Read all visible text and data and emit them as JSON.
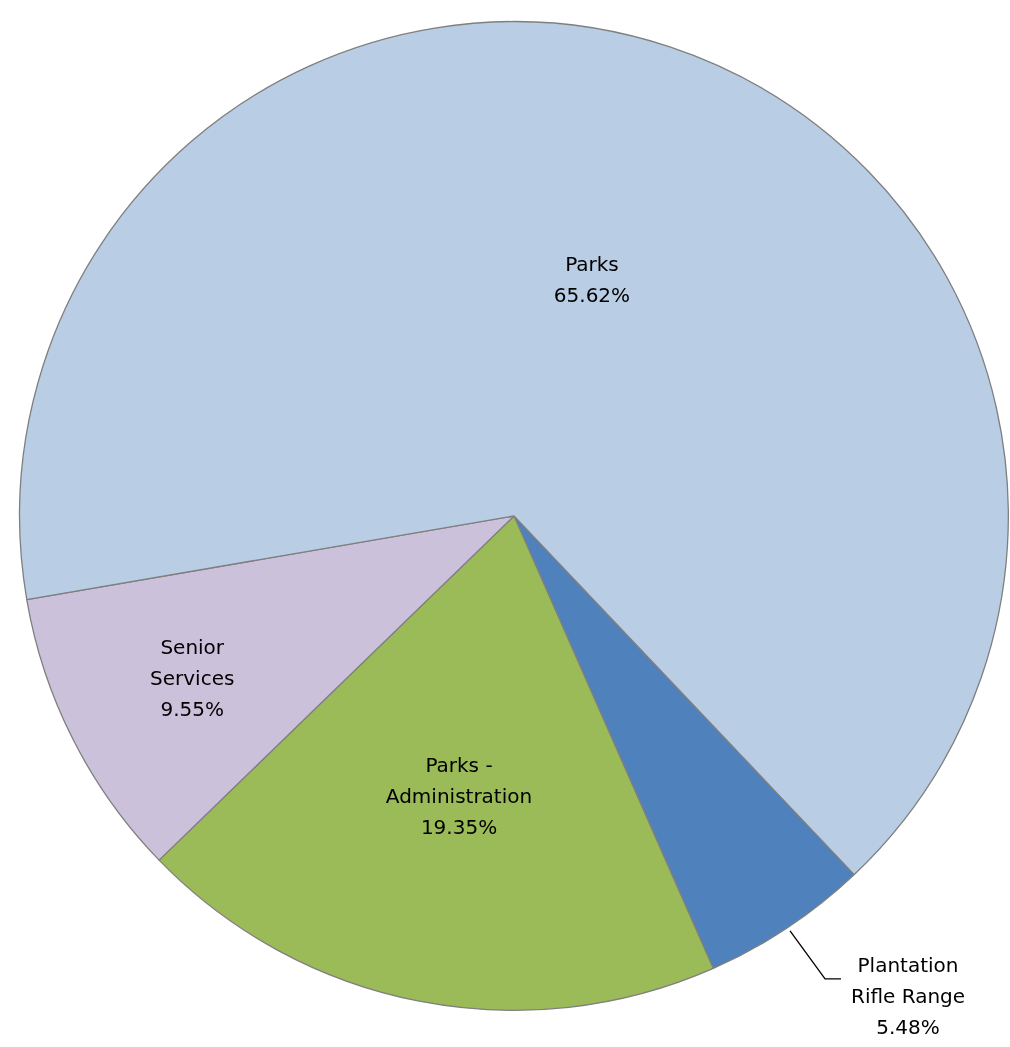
{
  "chart_data": {
    "type": "pie",
    "categories": [
      "Plantation Rifle Range",
      "Parks - Administration",
      "Senior Services",
      "Parks"
    ],
    "values": [
      5.48,
      19.35,
      9.55,
      65.62
    ],
    "colors": [
      "#4f81bd",
      "#9bbb59",
      "#ccc1da",
      "#b9cde5"
    ],
    "value_labels": [
      "5.48%",
      "19.35%",
      "9.55%",
      "65.62%"
    ],
    "legend": false
  }
}
